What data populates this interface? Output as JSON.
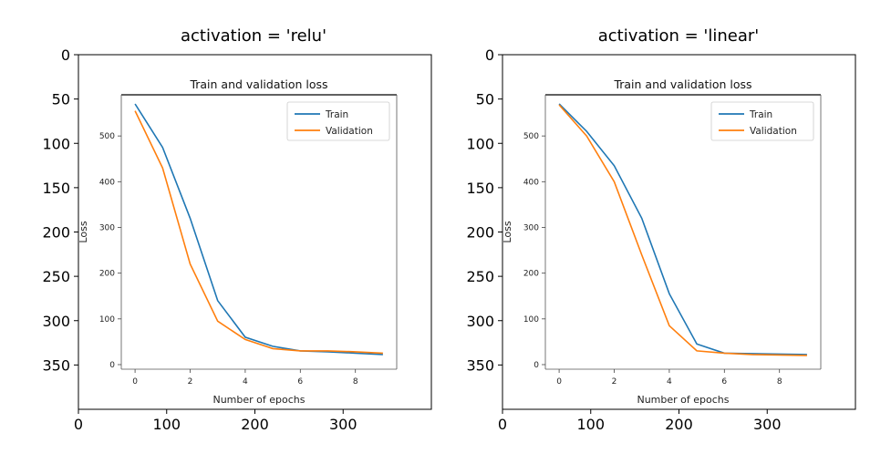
{
  "chart_data": [
    {
      "type": "line",
      "title": "activation = 'relu'",
      "outer_axes": {
        "x_ticks": [
          0,
          100,
          200,
          300
        ],
        "y_ticks": [
          0,
          50,
          100,
          150,
          200,
          250,
          300,
          350
        ],
        "xlim": [
          0,
          400
        ],
        "ylim": [
          400,
          0
        ]
      },
      "inner_plot": {
        "title": "Train and validation loss",
        "xlabel": "Number of epochs",
        "ylabel": "Loss",
        "x_ticks": [
          0,
          2,
          4,
          6,
          8
        ],
        "y_ticks": [
          0,
          100,
          200,
          300,
          400,
          500
        ],
        "xlim": [
          -0.5,
          9.5
        ],
        "ylim": [
          -10,
          590
        ],
        "legend": "top-right",
        "x": [
          0,
          1,
          2,
          3,
          4,
          5,
          6,
          7,
          8,
          9
        ],
        "series": [
          {
            "name": "Train",
            "color": "#1f77b4",
            "values": [
              570,
              475,
              320,
              140,
              60,
              40,
              30,
              28,
              25,
              22
            ]
          },
          {
            "name": "Validation",
            "color": "#ff7f0e",
            "values": [
              555,
              430,
              220,
              95,
              55,
              35,
              30,
              30,
              28,
              25
            ]
          }
        ]
      }
    },
    {
      "type": "line",
      "title": "activation = 'linear'",
      "outer_axes": {
        "x_ticks": [
          0,
          100,
          200,
          300
        ],
        "y_ticks": [
          0,
          50,
          100,
          150,
          200,
          250,
          300,
          350
        ],
        "xlim": [
          0,
          400
        ],
        "ylim": [
          400,
          0
        ]
      },
      "inner_plot": {
        "title": "Train and validation loss",
        "xlabel": "Number of epochs",
        "ylabel": "Loss",
        "x_ticks": [
          0,
          2,
          4,
          6,
          8
        ],
        "y_ticks": [
          0,
          100,
          200,
          300,
          400,
          500
        ],
        "xlim": [
          -0.5,
          9.5
        ],
        "ylim": [
          -10,
          590
        ],
        "legend": "top-right",
        "x": [
          0,
          1,
          2,
          3,
          4,
          5,
          6,
          7,
          8,
          9
        ],
        "series": [
          {
            "name": "Train",
            "color": "#1f77b4",
            "values": [
              570,
              510,
              435,
              320,
              155,
              45,
              25,
              24,
              23,
              22
            ]
          },
          {
            "name": "Validation",
            "color": "#ff7f0e",
            "values": [
              568,
              500,
              400,
              240,
              85,
              30,
              25,
              22,
              21,
              20
            ]
          }
        ]
      }
    }
  ]
}
